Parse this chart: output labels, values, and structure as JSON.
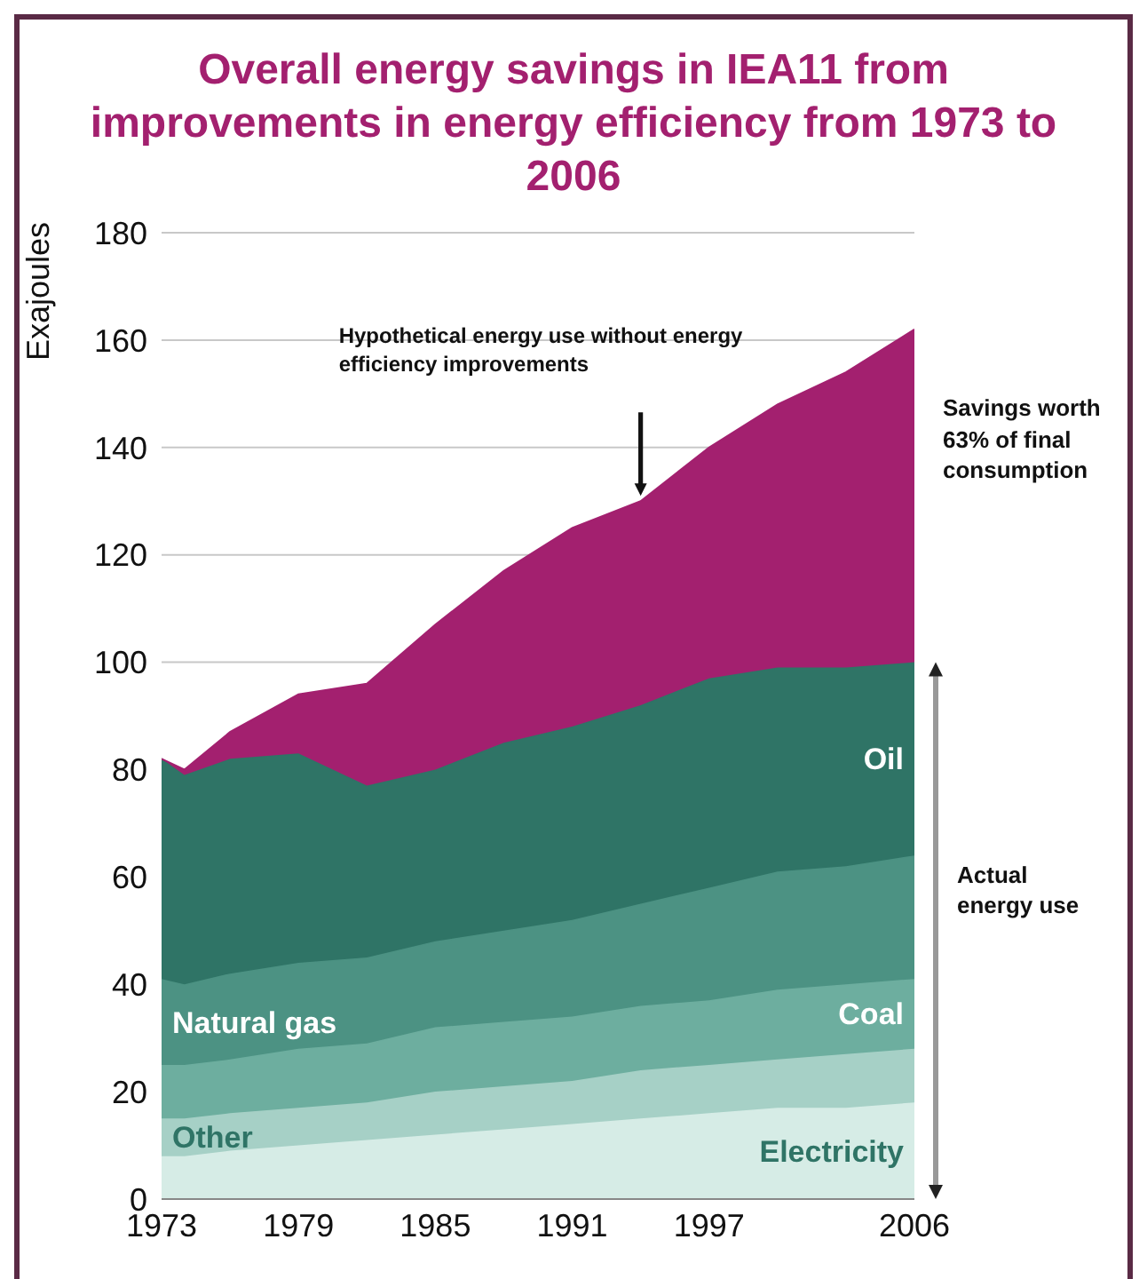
{
  "chart_data": {
    "type": "area",
    "stacked": true,
    "title": "Overall energy savings in IEA11 from improvements in energy efficiency from 1973 to 2006",
    "ylabel": "Exajoules",
    "x": [
      1973,
      1974,
      1976,
      1979,
      1982,
      1985,
      1988,
      1991,
      1994,
      1997,
      2000,
      2003,
      2006
    ],
    "series": [
      {
        "name": "Electricity",
        "color": "#d6ece6",
        "values": [
          8,
          8,
          9,
          10,
          11,
          12,
          13,
          14,
          15,
          16,
          17,
          17,
          18
        ]
      },
      {
        "name": "Other",
        "color": "#a6d0c6",
        "values": [
          7,
          7,
          7,
          7,
          7,
          8,
          8,
          8,
          9,
          9,
          9,
          10,
          10
        ]
      },
      {
        "name": "Coal",
        "color": "#6dae9f",
        "values": [
          10,
          10,
          10,
          11,
          11,
          12,
          12,
          12,
          12,
          12,
          13,
          13,
          13
        ]
      },
      {
        "name": "Natural gas",
        "color": "#4c9283",
        "values": [
          16,
          15,
          16,
          16,
          16,
          16,
          17,
          18,
          19,
          21,
          22,
          22,
          23
        ]
      },
      {
        "name": "Oil",
        "color": "#2f7466",
        "values": [
          41,
          39,
          40,
          39,
          32,
          32,
          35,
          36,
          37,
          39,
          38,
          37,
          36
        ]
      },
      {
        "color": "#a3206f",
        "values": [
          0,
          1,
          5,
          11,
          19,
          27,
          32,
          37,
          38,
          43,
          49,
          55,
          62
        ]
      }
    ],
    "xlim": [
      1973,
      2006
    ],
    "xticks": [
      1973,
      1979,
      1985,
      1991,
      1997,
      2006
    ],
    "ylim": [
      0,
      180
    ],
    "yticks": [
      0,
      20,
      40,
      60,
      80,
      100,
      120,
      140,
      160,
      180
    ],
    "grid": "y",
    "legend": false,
    "annotations": [
      "Hypothetical energy use without energy efficiency improvements",
      "Savings worth 63% of final consumption",
      "Actual energy use"
    ]
  }
}
